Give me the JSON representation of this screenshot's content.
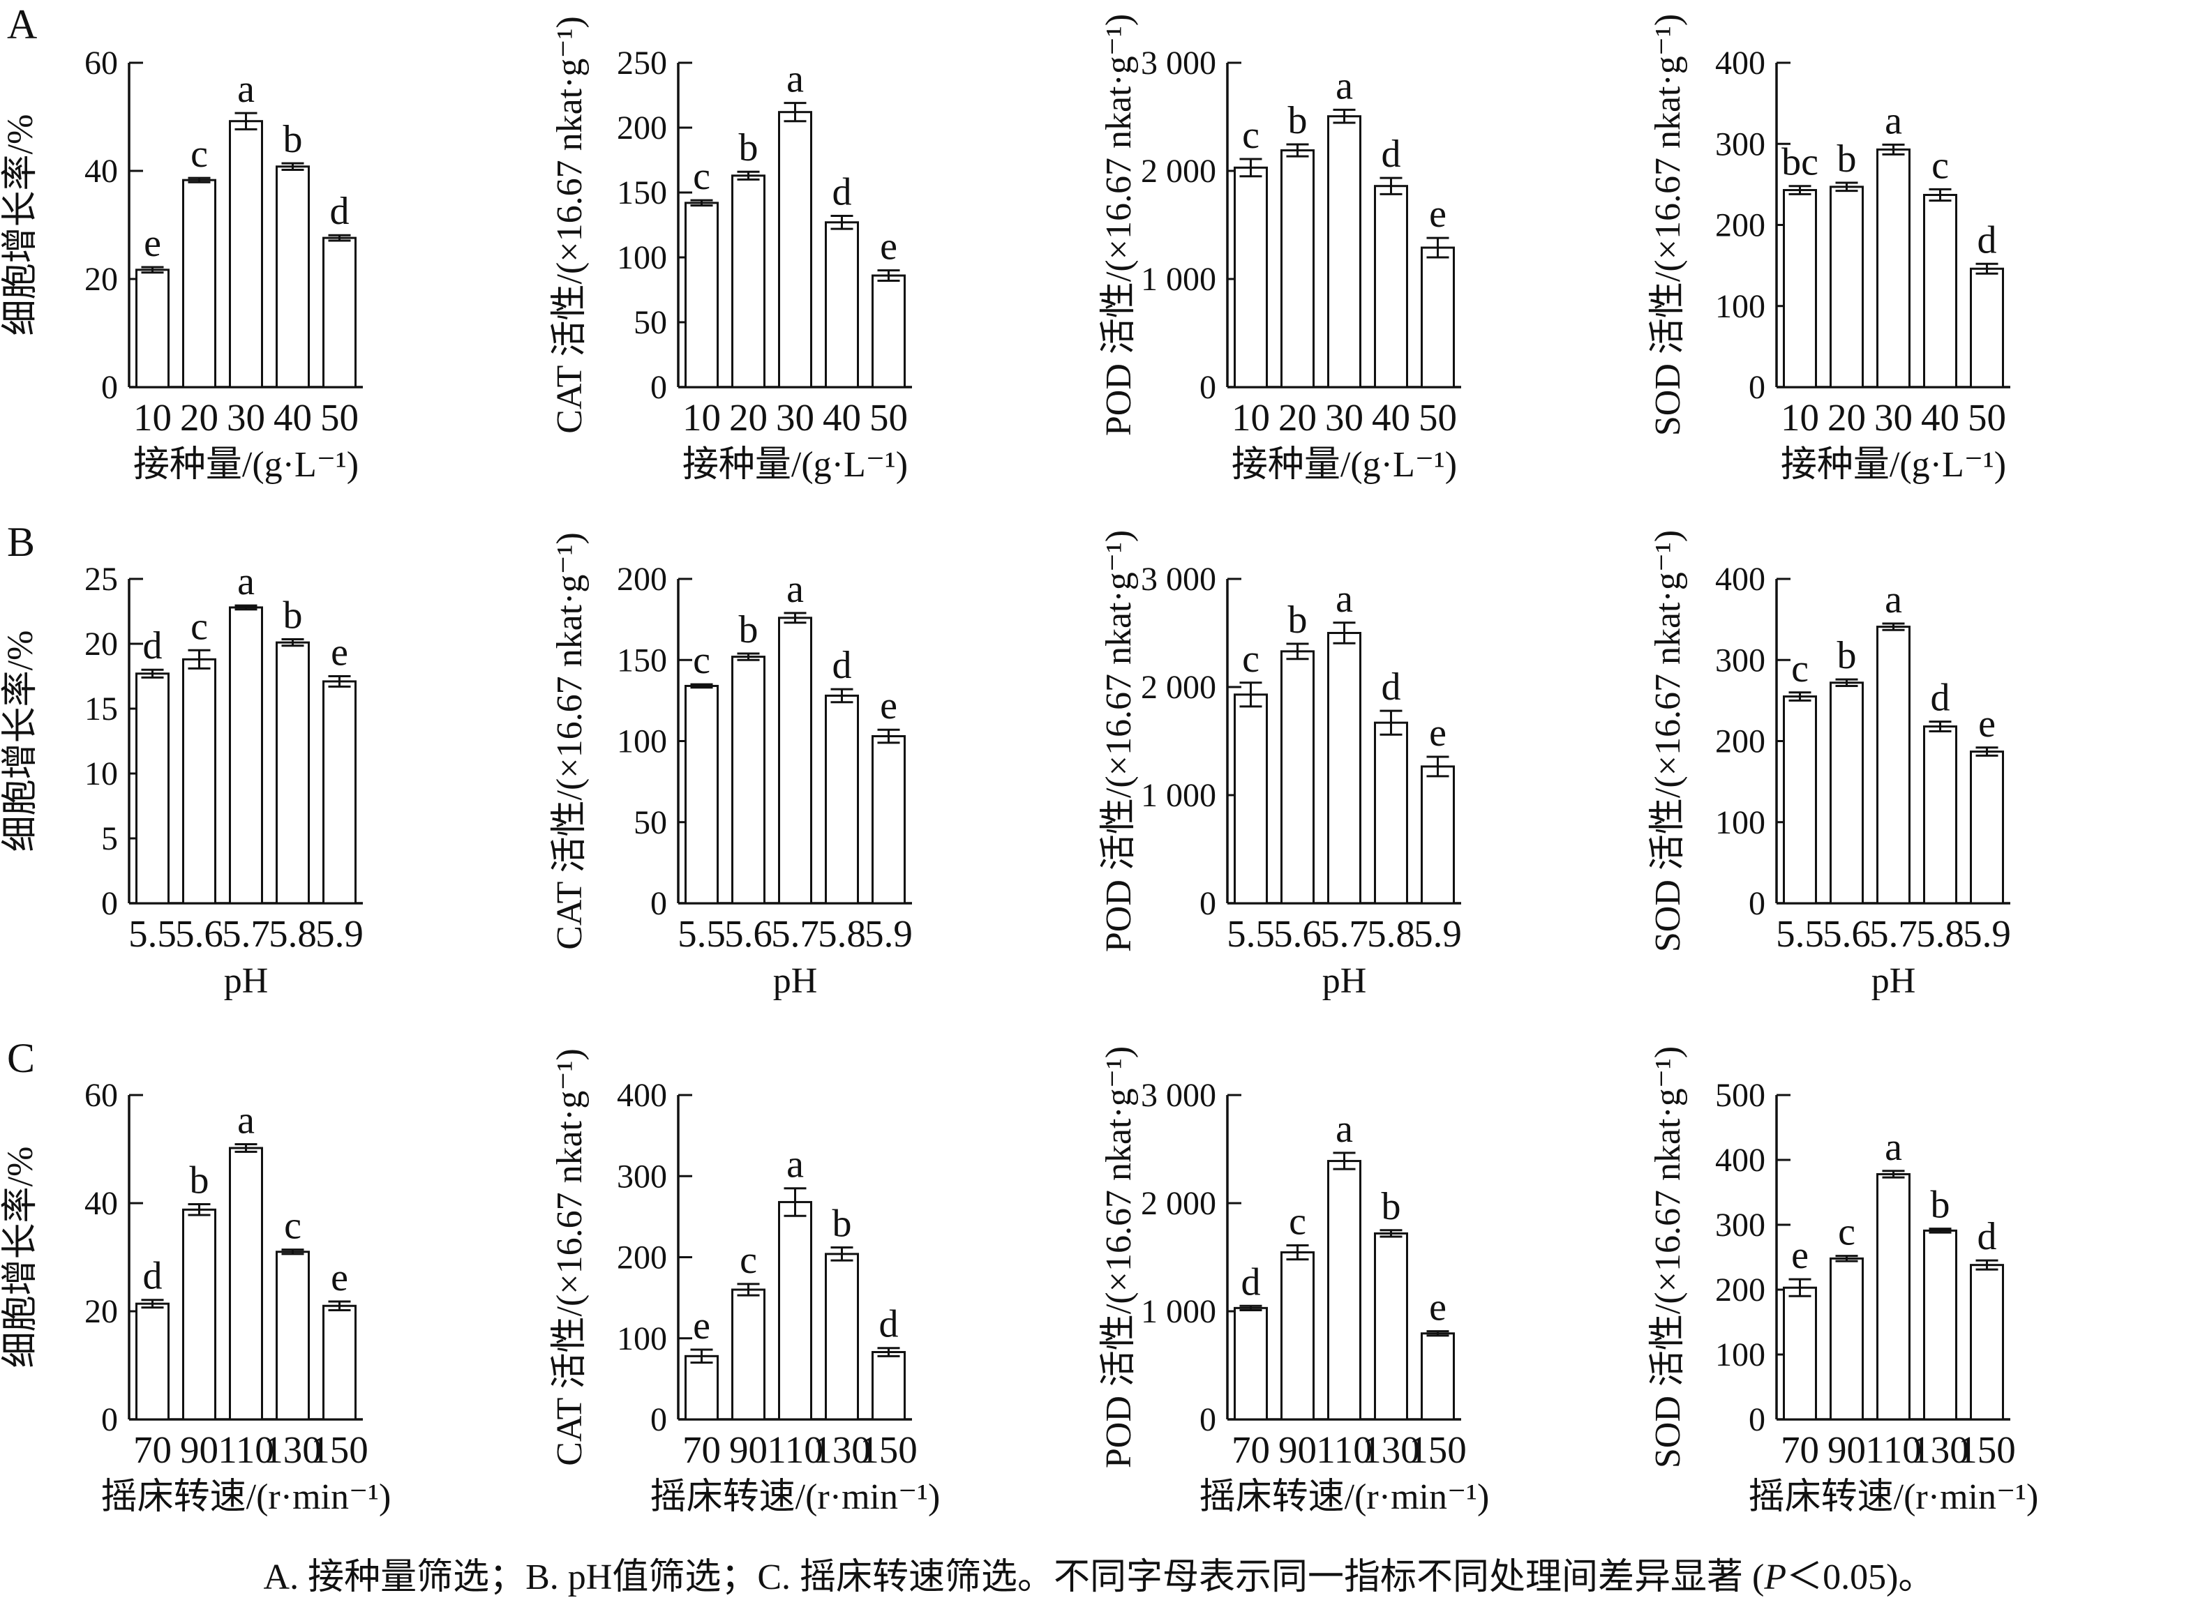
{
  "figure": {
    "panels": [
      "A",
      "B",
      "C"
    ],
    "caption": {
      "prefix": "A. 接种量筛选；B. pH值筛选；C. 摇床转速筛选。不同字母表示同一指标不同处理间差异显著 (",
      "italic": "P",
      "suffix": "＜0.05)。"
    }
  },
  "chart_data": [
    {
      "id": "a-growth-rate",
      "row": "A",
      "type": "bar",
      "ylabel": "细胞增长率/%",
      "xlabel": "接种量/(g·L⁻¹)",
      "categories": [
        "10",
        "20",
        "30",
        "40",
        "50"
      ],
      "values": [
        21.7,
        38.3,
        49.2,
        40.8,
        27.6
      ],
      "errors": [
        0.5,
        0.4,
        1.5,
        0.6,
        0.5
      ],
      "letters": [
        "e",
        "c",
        "a",
        "b",
        "d"
      ],
      "ylim": [
        0,
        60
      ],
      "yticks": [
        0,
        20,
        40,
        60
      ],
      "ytick_labels": [
        "0",
        "20",
        "40",
        "60"
      ]
    },
    {
      "id": "a-cat",
      "row": "A",
      "type": "bar",
      "ylabel": "CAT 活性/(×16.67 nkat·g⁻¹)",
      "xlabel": "接种量/(g·L⁻¹)",
      "categories": [
        "10",
        "20",
        "30",
        "40",
        "50"
      ],
      "values": [
        142,
        163,
        212,
        127,
        86
      ],
      "errors": [
        2,
        3,
        7,
        5,
        4
      ],
      "letters": [
        "c",
        "b",
        "a",
        "d",
        "e"
      ],
      "ylim": [
        0,
        250
      ],
      "yticks": [
        0,
        50,
        100,
        150,
        200,
        250
      ],
      "ytick_labels": [
        "0",
        "50",
        "100",
        "150",
        "200",
        "250"
      ]
    },
    {
      "id": "a-pod",
      "row": "A",
      "type": "bar",
      "ylabel": "POD 活性/(×16.67 nkat·g⁻¹)",
      "xlabel": "接种量/(g·L⁻¹)",
      "categories": [
        "10",
        "20",
        "30",
        "40",
        "50"
      ],
      "values": [
        2030,
        2190,
        2505,
        1860,
        1290
      ],
      "errors": [
        80,
        55,
        60,
        75,
        90
      ],
      "letters": [
        "c",
        "b",
        "a",
        "d",
        "e"
      ],
      "ylim": [
        0,
        3000
      ],
      "yticks": [
        0,
        1000,
        2000,
        3000
      ],
      "ytick_labels": [
        "0",
        "1 000",
        "2 000",
        "3 000"
      ]
    },
    {
      "id": "a-sod",
      "row": "A",
      "type": "bar",
      "ylabel": "SOD 活性/(×16.67 nkat·g⁻¹)",
      "xlabel": "接种量/(g·L⁻¹)",
      "categories": [
        "10",
        "20",
        "30",
        "40",
        "50"
      ],
      "values": [
        243,
        247,
        293,
        237,
        146
      ],
      "errors": [
        5,
        5,
        6,
        7,
        6
      ],
      "letters": [
        "bc",
        "b",
        "a",
        "c",
        "d"
      ],
      "ylim": [
        0,
        400
      ],
      "yticks": [
        0,
        100,
        200,
        300,
        400
      ],
      "ytick_labels": [
        "0",
        "100",
        "200",
        "300",
        "400"
      ]
    },
    {
      "id": "b-growth-rate",
      "row": "B",
      "type": "bar",
      "ylabel": "细胞增长率/%",
      "xlabel": "pH",
      "categories": [
        "5.5",
        "5.6",
        "5.7",
        "5.8",
        "5.9"
      ],
      "values": [
        17.7,
        18.8,
        22.8,
        20.1,
        17.1
      ],
      "errors": [
        0.3,
        0.7,
        0.15,
        0.25,
        0.4
      ],
      "letters": [
        "d",
        "c",
        "a",
        "b",
        "e"
      ],
      "ylim": [
        0,
        25
      ],
      "yticks": [
        0,
        5,
        10,
        15,
        20,
        25
      ],
      "ytick_labels": [
        "0",
        "5",
        "10",
        "15",
        "20",
        "25"
      ]
    },
    {
      "id": "b-cat",
      "row": "B",
      "type": "bar",
      "ylabel": "CAT 活性/(×16.67 nkat·g⁻¹)",
      "xlabel": "pH",
      "categories": [
        "5.5",
        "5.6",
        "5.7",
        "5.8",
        "5.9"
      ],
      "values": [
        134,
        152,
        176,
        128,
        103
      ],
      "errors": [
        1,
        2,
        3,
        4,
        4
      ],
      "letters": [
        "c",
        "b",
        "a",
        "d",
        "e"
      ],
      "ylim": [
        0,
        200
      ],
      "yticks": [
        0,
        50,
        100,
        150,
        200
      ],
      "ytick_labels": [
        "0",
        "50",
        "100",
        "150",
        "200"
      ]
    },
    {
      "id": "b-pod",
      "row": "B",
      "type": "bar",
      "ylabel": "POD 活性/(×16.67 nkat·g⁻¹)",
      "xlabel": "pH",
      "categories": [
        "5.5",
        "5.6",
        "5.7",
        "5.8",
        "5.9"
      ],
      "values": [
        1930,
        2330,
        2500,
        1670,
        1265
      ],
      "errors": [
        110,
        70,
        95,
        110,
        90
      ],
      "letters": [
        "c",
        "b",
        "a",
        "d",
        "e"
      ],
      "ylim": [
        0,
        3000
      ],
      "yticks": [
        0,
        1000,
        2000,
        3000
      ],
      "ytick_labels": [
        "0",
        "1 000",
        "2 000",
        "3 000"
      ]
    },
    {
      "id": "b-sod",
      "row": "B",
      "type": "bar",
      "ylabel": "SOD 活性/(×16.67 nkat·g⁻¹)",
      "xlabel": "pH",
      "categories": [
        "5.5",
        "5.6",
        "5.7",
        "5.8",
        "5.9"
      ],
      "values": [
        255,
        272,
        341,
        218,
        187
      ],
      "errors": [
        5,
        4,
        4,
        6,
        5
      ],
      "letters": [
        "c",
        "b",
        "a",
        "d",
        "e"
      ],
      "ylim": [
        0,
        400
      ],
      "yticks": [
        0,
        100,
        200,
        300,
        400
      ],
      "ytick_labels": [
        "0",
        "100",
        "200",
        "300",
        "400"
      ]
    },
    {
      "id": "c-growth-rate",
      "row": "C",
      "type": "bar",
      "ylabel": "细胞增长率/%",
      "xlabel": "摇床转速/(r·min⁻¹)",
      "categories": [
        "70",
        "90",
        "110",
        "130",
        "150"
      ],
      "values": [
        21.4,
        38.8,
        50.2,
        31.0,
        21.0
      ],
      "errors": [
        0.7,
        1.0,
        0.7,
        0.4,
        0.8
      ],
      "letters": [
        "d",
        "b",
        "a",
        "c",
        "e"
      ],
      "ylim": [
        0,
        60
      ],
      "yticks": [
        0,
        20,
        40,
        60
      ],
      "ytick_labels": [
        "0",
        "20",
        "40",
        "60"
      ]
    },
    {
      "id": "c-cat",
      "row": "C",
      "type": "bar",
      "ylabel": "CAT 活性/(×16.67 nkat·g⁻¹)",
      "xlabel": "摇床转速/(r·min⁻¹)",
      "categories": [
        "70",
        "90",
        "110",
        "130",
        "150"
      ],
      "values": [
        78,
        160,
        268,
        204,
        83
      ],
      "errors": [
        8,
        7,
        17,
        8,
        5
      ],
      "letters": [
        "e",
        "c",
        "a",
        "b",
        "d"
      ],
      "ylim": [
        0,
        400
      ],
      "yticks": [
        0,
        100,
        200,
        300,
        400
      ],
      "ytick_labels": [
        "0",
        "100",
        "200",
        "300",
        "400"
      ]
    },
    {
      "id": "c-pod",
      "row": "C",
      "type": "bar",
      "ylabel": "POD 活性/(×16.67 nkat·g⁻¹)",
      "xlabel": "摇床转速/(r·min⁻¹)",
      "categories": [
        "70",
        "90",
        "110",
        "130",
        "150"
      ],
      "values": [
        1030,
        1545,
        2390,
        1720,
        795
      ],
      "errors": [
        20,
        65,
        75,
        30,
        20
      ],
      "letters": [
        "d",
        "c",
        "a",
        "b",
        "e"
      ],
      "ylim": [
        0,
        3000
      ],
      "yticks": [
        0,
        1000,
        2000,
        3000
      ],
      "ytick_labels": [
        "0",
        "1 000",
        "2 000",
        "3 000"
      ]
    },
    {
      "id": "c-sod",
      "row": "C",
      "type": "bar",
      "ylabel": "SOD 活性/(×16.67 nkat·g⁻¹)",
      "xlabel": "摇床转速/(r·min⁻¹)",
      "categories": [
        "70",
        "90",
        "110",
        "130",
        "150"
      ],
      "values": [
        203,
        248,
        378,
        291,
        238
      ],
      "errors": [
        13,
        4,
        5,
        3,
        7
      ],
      "letters": [
        "e",
        "c",
        "a",
        "b",
        "d"
      ],
      "ylim": [
        0,
        500
      ],
      "yticks": [
        0,
        100,
        200,
        300,
        400,
        500
      ],
      "ytick_labels": [
        "0",
        "100",
        "200",
        "300",
        "400",
        "500"
      ]
    }
  ]
}
